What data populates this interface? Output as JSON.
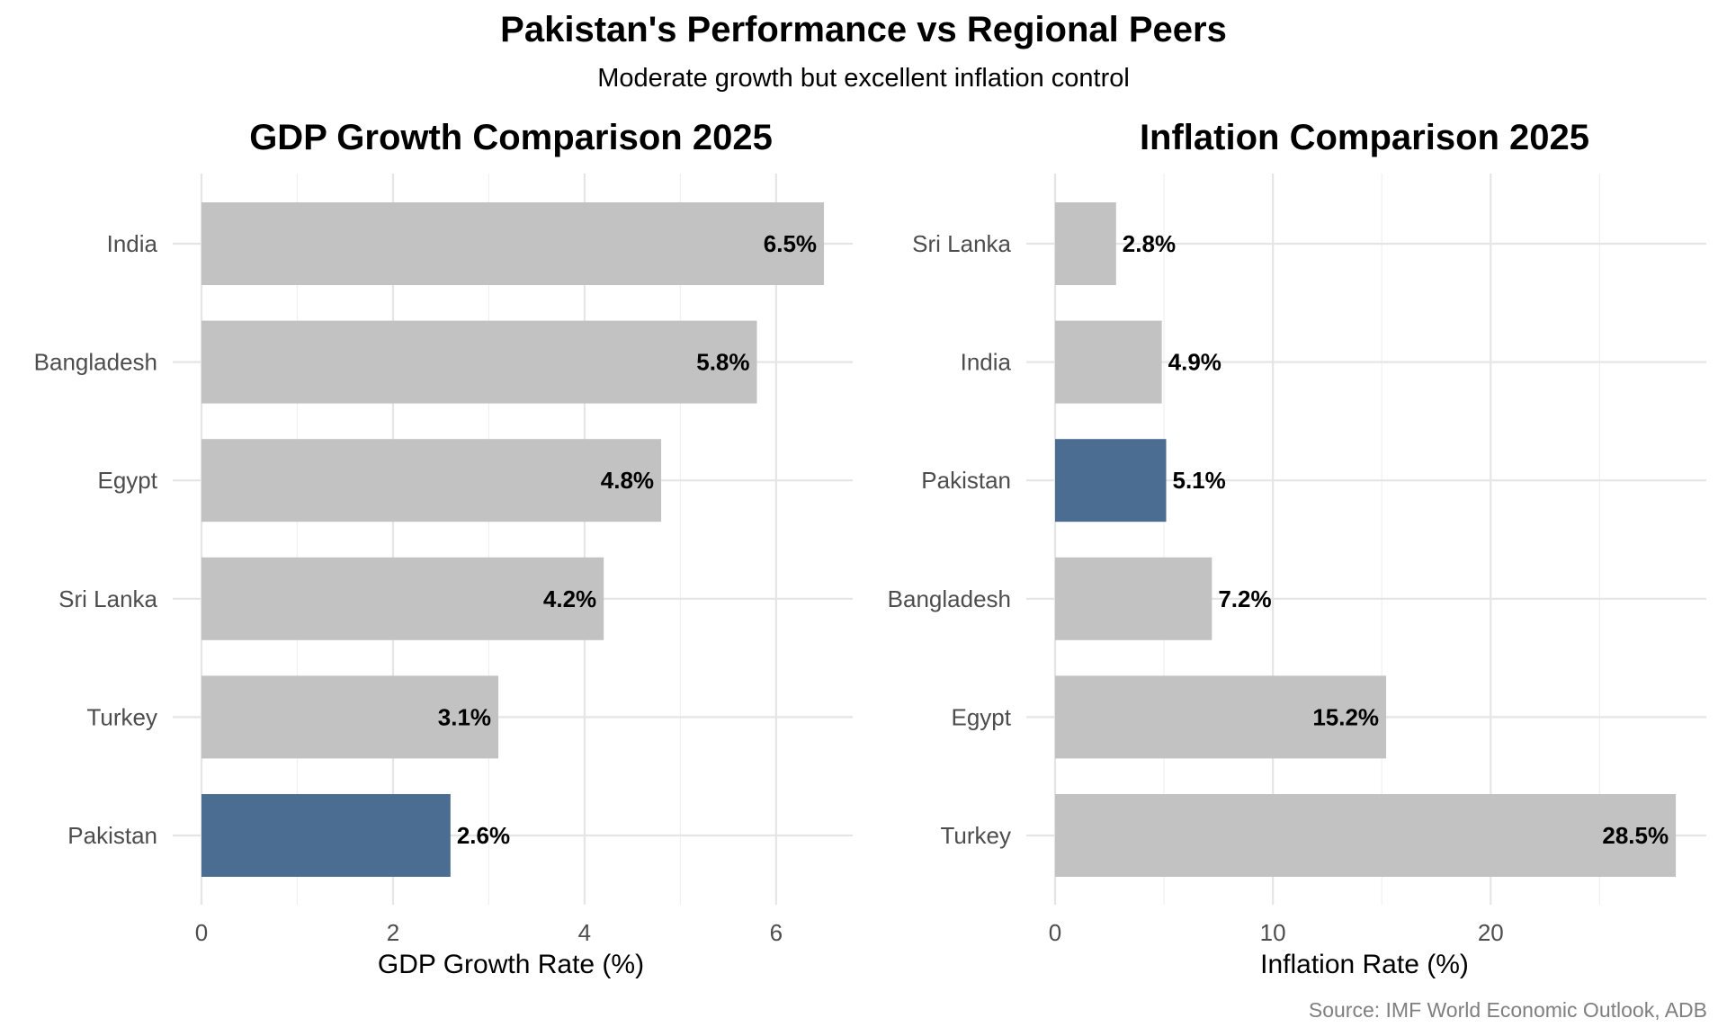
{
  "title": "Pakistan's Performance vs Regional Peers",
  "subtitle": "Moderate growth but excellent inflation control",
  "caption": "Source: IMF World Economic Outlook, ADB",
  "colors": {
    "highlight": "#4a6d91",
    "other": "#c2c2c2",
    "grid": "#e5e5e5"
  },
  "chart_data": [
    {
      "type": "bar",
      "orientation": "horizontal",
      "title": "GDP Growth Comparison 2025",
      "xlabel": "GDP Growth Rate (%)",
      "ylabel": "",
      "categories": [
        "India",
        "Bangladesh",
        "Egypt",
        "Sri Lanka",
        "Turkey",
        "Pakistan"
      ],
      "values": [
        6.5,
        5.8,
        4.8,
        4.2,
        3.1,
        2.6
      ],
      "labels": [
        "6.5%",
        "5.8%",
        "4.8%",
        "4.2%",
        "3.1%",
        "2.6%"
      ],
      "highlight": "Pakistan",
      "xlim": [
        0,
        6.8
      ],
      "ticks": [
        0,
        2,
        4,
        6
      ],
      "tick_labels": [
        "0",
        "2",
        "4",
        "6"
      ],
      "grid": true,
      "legend": "none"
    },
    {
      "type": "bar",
      "orientation": "horizontal",
      "title": "Inflation Comparison 2025",
      "xlabel": "Inflation Rate (%)",
      "ylabel": "",
      "categories": [
        "Sri Lanka",
        "India",
        "Pakistan",
        "Bangladesh",
        "Egypt",
        "Turkey"
      ],
      "values": [
        2.8,
        4.9,
        5.1,
        7.2,
        15.2,
        28.5
      ],
      "labels": [
        "2.8%",
        "4.9%",
        "5.1%",
        "7.2%",
        "15.2%",
        "28.5%"
      ],
      "highlight": "Pakistan",
      "xlim": [
        0,
        29.9
      ],
      "ticks": [
        0,
        10,
        20
      ],
      "tick_labels": [
        "0",
        "10",
        "20"
      ],
      "grid": true,
      "legend": "none"
    }
  ]
}
